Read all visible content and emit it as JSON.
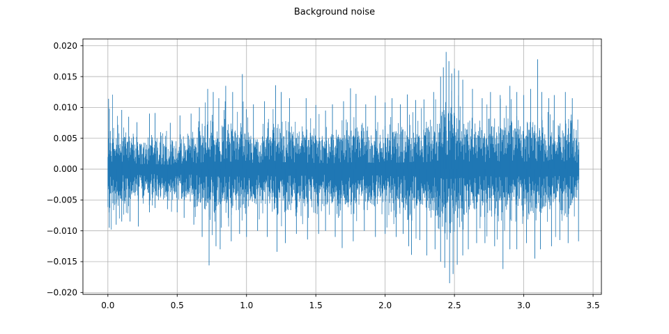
{
  "figure": {
    "background": "#ffffff"
  },
  "chart_data": {
    "type": "line",
    "title": "Background noise",
    "xlabel": "",
    "ylabel": "",
    "legend": null,
    "grid": true,
    "grid_color": "#b0b0b0",
    "axis_color": "#000000",
    "line_color": "#1f77b4",
    "xlim": [
      -0.18,
      3.56
    ],
    "ylim": [
      -0.0203,
      0.0211
    ],
    "xticks": [
      0.0,
      0.5,
      1.0,
      1.5,
      2.0,
      2.5,
      3.0,
      3.5
    ],
    "xtick_labels": [
      "0.0",
      "0.5",
      "1.0",
      "1.5",
      "2.0",
      "2.5",
      "3.0",
      "3.5"
    ],
    "yticks": [
      -0.02,
      -0.015,
      -0.01,
      -0.005,
      0.0,
      0.005,
      0.01,
      0.015,
      0.02
    ],
    "ytick_labels": [
      "−0.020",
      "−0.015",
      "−0.010",
      "−0.005",
      "0.000",
      "0.005",
      "0.010",
      "0.015",
      "0.020"
    ],
    "signal": {
      "description": "dense audio noise waveform; local std-dev envelope sampled every 0.05 s plus notable extreme excursions",
      "t_start": 0.0,
      "t_end": 3.4,
      "t_step": 0.05,
      "sigma": [
        0.0038,
        0.0032,
        0.0029,
        0.0026,
        0.0024,
        0.0023,
        0.0024,
        0.0023,
        0.0021,
        0.0021,
        0.0022,
        0.0023,
        0.0025,
        0.0029,
        0.0034,
        0.0036,
        0.0034,
        0.0036,
        0.0034,
        0.0035,
        0.0033,
        0.0029,
        0.0028,
        0.003,
        0.0035,
        0.0033,
        0.0031,
        0.0029,
        0.0031,
        0.003,
        0.0029,
        0.0027,
        0.0026,
        0.0029,
        0.003,
        0.0032,
        0.0031,
        0.0029,
        0.003,
        0.0029,
        0.003,
        0.0031,
        0.003,
        0.0032,
        0.0033,
        0.0031,
        0.0033,
        0.0036,
        0.0042,
        0.0046,
        0.0044,
        0.004,
        0.0036,
        0.0033,
        0.0034,
        0.0033,
        0.0035,
        0.0038,
        0.0036,
        0.0034,
        0.0035,
        0.0037,
        0.0038,
        0.0035,
        0.0033,
        0.0032,
        0.0033,
        0.0032,
        0.003
      ],
      "peaks": [
        [
          0.005,
          0.0114
        ],
        [
          0.1,
          0.0096
        ],
        [
          0.15,
          0.0085
        ],
        [
          0.21,
          0.0076
        ],
        [
          0.3,
          0.009
        ],
        [
          0.34,
          0.0091
        ],
        [
          0.38,
          0.006
        ],
        [
          0.45,
          0.0075
        ],
        [
          0.52,
          0.0087
        ],
        [
          0.6,
          0.009
        ],
        [
          0.66,
          0.01
        ],
        [
          0.72,
          0.013
        ],
        [
          0.76,
          0.0125
        ],
        [
          0.8,
          0.0115
        ],
        [
          0.85,
          0.0135
        ],
        [
          0.9,
          0.0125
        ],
        [
          0.97,
          0.0154
        ],
        [
          1.05,
          0.0105
        ],
        [
          1.13,
          0.011
        ],
        [
          1.21,
          0.0136
        ],
        [
          1.25,
          0.0125
        ],
        [
          1.31,
          0.0115
        ],
        [
          1.43,
          0.0115
        ],
        [
          1.5,
          0.0104
        ],
        [
          1.57,
          0.0095
        ],
        [
          1.62,
          0.0105
        ],
        [
          1.7,
          0.011
        ],
        [
          1.75,
          0.0131
        ],
        [
          1.79,
          0.0122
        ],
        [
          1.86,
          0.0105
        ],
        [
          1.93,
          0.0119
        ],
        [
          2.0,
          0.0108
        ],
        [
          2.05,
          0.0115
        ],
        [
          2.11,
          0.0105
        ],
        [
          2.16,
          0.0121
        ],
        [
          2.22,
          0.0112
        ],
        [
          2.28,
          0.0113
        ],
        [
          2.35,
          0.0125
        ],
        [
          2.4,
          0.015
        ],
        [
          2.42,
          0.0165
        ],
        [
          2.44,
          0.019
        ],
        [
          2.46,
          0.0175
        ],
        [
          2.48,
          0.0155
        ],
        [
          2.5,
          0.0163
        ],
        [
          2.53,
          0.016
        ],
        [
          2.56,
          0.0145
        ],
        [
          2.63,
          0.013
        ],
        [
          2.7,
          0.0115
        ],
        [
          2.76,
          0.0125
        ],
        [
          2.83,
          0.012
        ],
        [
          2.9,
          0.0135
        ],
        [
          2.95,
          0.0125
        ],
        [
          3.0,
          0.012
        ],
        [
          3.05,
          0.013
        ],
        [
          3.1,
          0.0178
        ],
        [
          3.13,
          0.0125
        ],
        [
          3.18,
          0.0115
        ],
        [
          3.22,
          0.012
        ],
        [
          3.3,
          0.0125
        ],
        [
          3.35,
          0.0115
        ]
      ],
      "troughs": [
        [
          0.01,
          -0.0095
        ],
        [
          0.06,
          -0.009
        ],
        [
          0.1,
          -0.0085
        ],
        [
          0.16,
          -0.0085
        ],
        [
          0.22,
          -0.0093
        ],
        [
          0.3,
          -0.007
        ],
        [
          0.34,
          -0.0063
        ],
        [
          0.43,
          -0.0065
        ],
        [
          0.5,
          -0.007
        ],
        [
          0.55,
          -0.0079
        ],
        [
          0.62,
          -0.009
        ],
        [
          0.68,
          -0.011
        ],
        [
          0.73,
          -0.0156
        ],
        [
          0.78,
          -0.0125
        ],
        [
          0.81,
          -0.013
        ],
        [
          0.89,
          -0.0117
        ],
        [
          0.95,
          -0.0105
        ],
        [
          1.0,
          -0.011
        ],
        [
          1.08,
          -0.01
        ],
        [
          1.15,
          -0.011
        ],
        [
          1.22,
          -0.0134
        ],
        [
          1.28,
          -0.012
        ],
        [
          1.36,
          -0.0105
        ],
        [
          1.44,
          -0.0114
        ],
        [
          1.52,
          -0.0105
        ],
        [
          1.57,
          -0.01
        ],
        [
          1.64,
          -0.011
        ],
        [
          1.69,
          -0.0128
        ],
        [
          1.77,
          -0.0117
        ],
        [
          1.85,
          -0.01
        ],
        [
          1.93,
          -0.011
        ],
        [
          2.0,
          -0.0105
        ],
        [
          2.08,
          -0.011
        ],
        [
          2.13,
          -0.0105
        ],
        [
          2.17,
          -0.0125
        ],
        [
          2.19,
          -0.0139
        ],
        [
          2.25,
          -0.0115
        ],
        [
          2.3,
          -0.014
        ],
        [
          2.36,
          -0.013
        ],
        [
          2.4,
          -0.015
        ],
        [
          2.43,
          -0.016
        ],
        [
          2.465,
          -0.0185
        ],
        [
          2.49,
          -0.017
        ],
        [
          2.52,
          -0.0155
        ],
        [
          2.56,
          -0.014
        ],
        [
          2.6,
          -0.013
        ],
        [
          2.66,
          -0.012
        ],
        [
          2.72,
          -0.012
        ],
        [
          2.79,
          -0.0125
        ],
        [
          2.85,
          -0.0162
        ],
        [
          2.9,
          -0.013
        ],
        [
          2.95,
          -0.013
        ],
        [
          3.02,
          -0.012
        ],
        [
          3.08,
          -0.0145
        ],
        [
          3.12,
          -0.013
        ],
        [
          3.2,
          -0.0125
        ],
        [
          3.26,
          -0.0115
        ],
        [
          3.32,
          -0.012
        ],
        [
          3.395,
          -0.0117
        ]
      ]
    }
  }
}
